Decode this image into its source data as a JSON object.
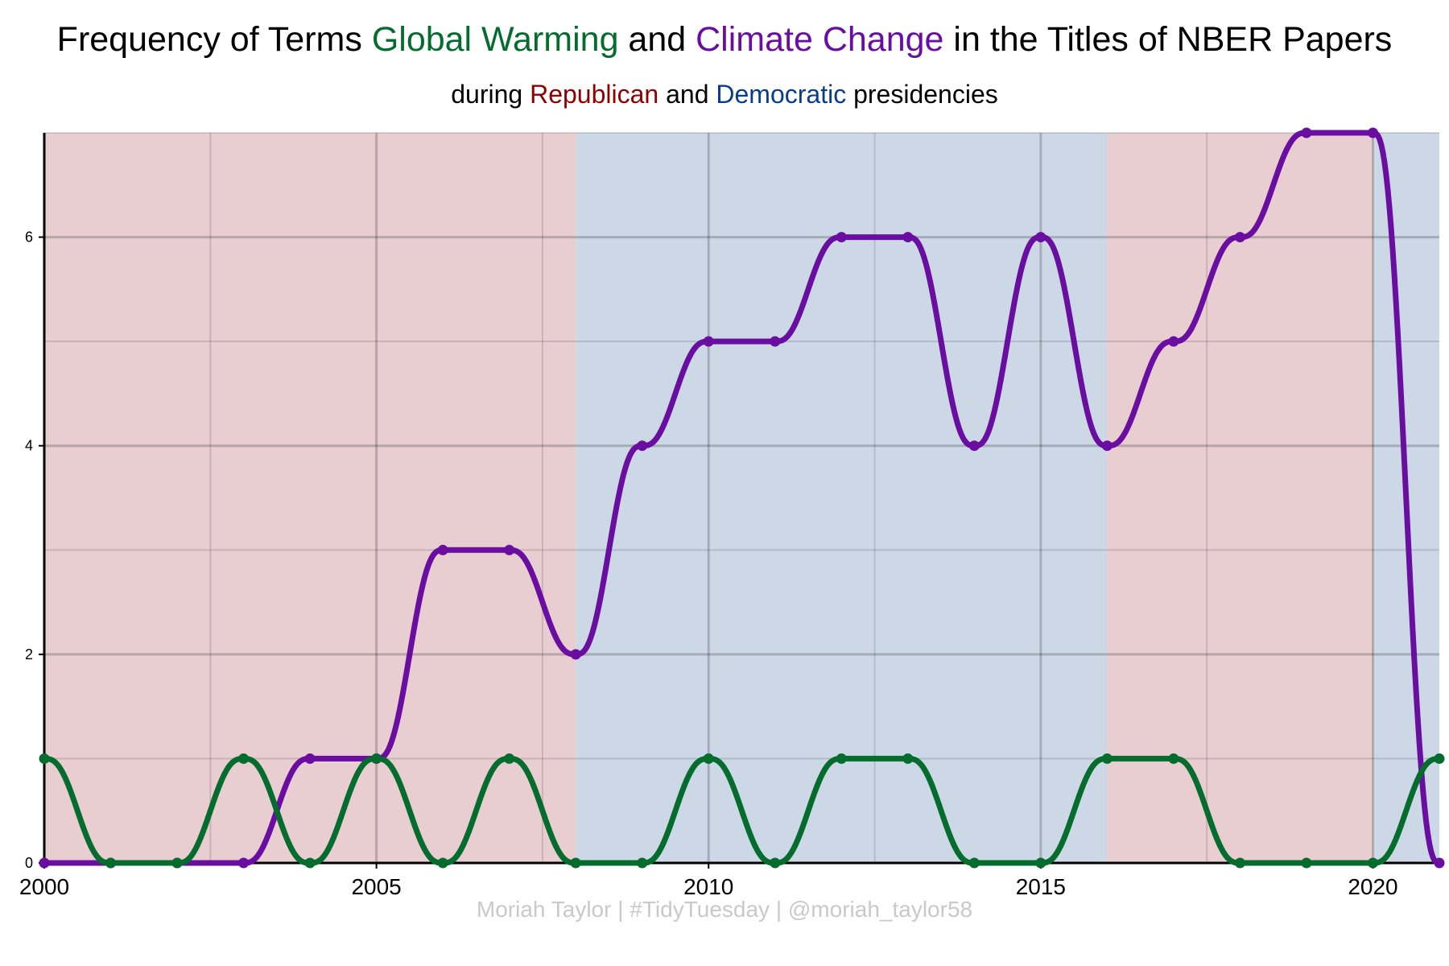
{
  "chart_data": {
    "type": "line",
    "title": {
      "prefix": "Frequency of Terms ",
      "term1": "Global Warming",
      "middle": " and ",
      "term2": "Climate Change",
      "suffix": " in the Titles of NBER Papers"
    },
    "subtitle": {
      "prefix": "during ",
      "party1": "Republican",
      "middle": " and ",
      "party2": "Democratic",
      "suffix": " presidencies"
    },
    "caption": "Moriah Taylor | #TidyTuesday | @moriah_taylor58",
    "xlabel": "",
    "ylabel": "",
    "xlim": [
      2000,
      2021
    ],
    "ylim": [
      0,
      7
    ],
    "x_ticks": [
      2000,
      2005,
      2010,
      2015,
      2020
    ],
    "y_ticks": [
      0,
      2,
      4,
      6
    ],
    "x": [
      2000,
      2001,
      2002,
      2003,
      2004,
      2005,
      2006,
      2007,
      2008,
      2009,
      2010,
      2011,
      2012,
      2013,
      2014,
      2015,
      2016,
      2017,
      2018,
      2019,
      2020,
      2021
    ],
    "series": [
      {
        "name": "Climate Change",
        "color": "#6a0da1",
        "values": [
          0,
          0,
          0,
          0,
          1,
          1,
          3,
          3,
          2,
          4,
          5,
          5,
          6,
          6,
          4,
          6,
          4,
          5,
          6,
          7,
          7,
          0
        ]
      },
      {
        "name": "Global Warming",
        "color": "#046c2c",
        "values": [
          1,
          0,
          0,
          1,
          0,
          1,
          0,
          1,
          0,
          0,
          1,
          0,
          1,
          1,
          0,
          0,
          1,
          1,
          0,
          0,
          0,
          1
        ]
      }
    ],
    "presidencies": [
      {
        "party": "Republican",
        "start": 2000,
        "end": 2008
      },
      {
        "party": "Democratic",
        "start": 2008,
        "end": 2016
      },
      {
        "party": "Republican",
        "start": 2016,
        "end": 2020
      },
      {
        "party": "Democratic",
        "start": 2020,
        "end": 2021
      }
    ],
    "colors": {
      "global_warming": "#046c2c",
      "climate_change": "#6a0da1",
      "republican": "#8b0000",
      "democratic": "#0b3c8c",
      "republican_band": "#e8cdd1",
      "democratic_band": "#cdd8e6",
      "caption": "#c9c9c9"
    }
  }
}
